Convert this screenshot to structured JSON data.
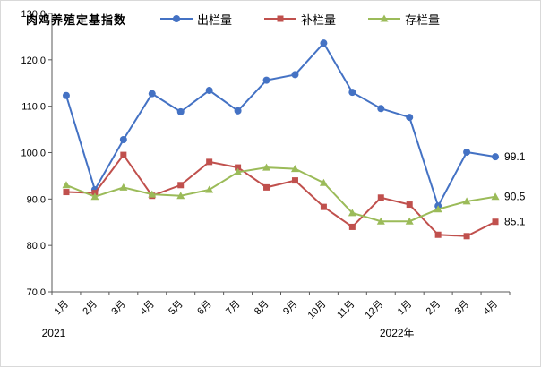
{
  "chart_data": {
    "type": "line",
    "title": "肉鸡养殖定基指数",
    "xlabel": "",
    "ylabel": "",
    "ylim": [
      70,
      130
    ],
    "ytick_step": 10,
    "ytick_labels": [
      "70.0",
      "80.0",
      "90.0",
      "100.0",
      "110.0",
      "120.0",
      "130.0"
    ],
    "grid": false,
    "legend_position": "top",
    "categories": [
      "1月",
      "2月",
      "3月",
      "4月",
      "5月",
      "6月",
      "7月",
      "8月",
      "9月",
      "10月",
      "11月",
      "12月",
      "1月",
      "2月",
      "3月",
      "4月"
    ],
    "x_axis_years": [
      {
        "label": "2021",
        "at_index": 0
      },
      {
        "label": "2022年",
        "at_index": 12
      }
    ],
    "series": [
      {
        "name": "出栏量",
        "color": "#4472C4",
        "marker": "circle",
        "end_label": "99.1",
        "values": [
          112.3,
          92.0,
          102.8,
          112.7,
          108.8,
          113.4,
          109.0,
          115.6,
          116.8,
          123.6,
          113.0,
          109.5,
          107.6,
          88.5,
          100.1,
          99.1
        ]
      },
      {
        "name": "补栏量",
        "color": "#C0504D",
        "marker": "square",
        "end_label": "85.1",
        "values": [
          91.5,
          91.3,
          99.5,
          90.7,
          93.0,
          98.0,
          96.8,
          92.5,
          94.0,
          88.3,
          84.0,
          90.3,
          88.8,
          82.3,
          82.0,
          85.1
        ]
      },
      {
        "name": "存栏量",
        "color": "#9BBB59",
        "marker": "triangle",
        "end_label": "90.5",
        "values": [
          93.0,
          90.5,
          92.5,
          91.0,
          90.7,
          92.0,
          95.8,
          96.8,
          96.5,
          93.5,
          87.0,
          85.2,
          85.2,
          87.8,
          89.5,
          90.5
        ]
      }
    ],
    "axis_color": "#595959",
    "text_color": "#000000"
  }
}
